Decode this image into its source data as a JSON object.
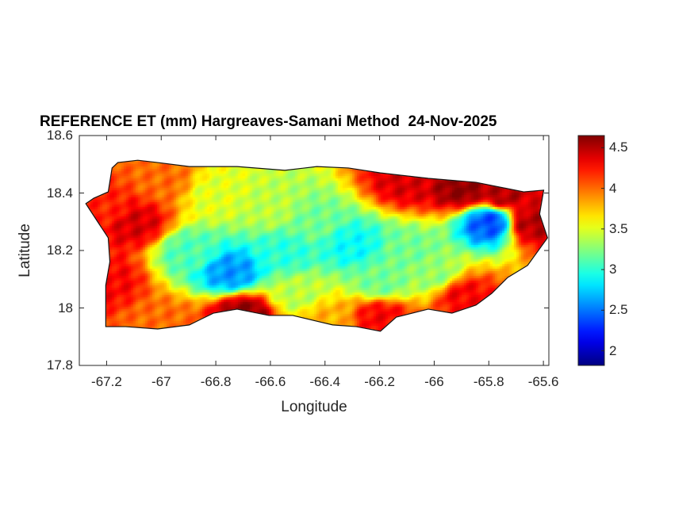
{
  "title": "REFERENCE ET (mm) Hargreaves-Samani Method  24-Nov-2025",
  "chart_data": {
    "type": "heatmap",
    "title": "REFERENCE ET (mm) Hargreaves-Samani Method  24-Nov-2025",
    "xlabel": "Longitude",
    "ylabel": "Latitude",
    "xlim": [
      -67.3,
      -65.58
    ],
    "ylim": [
      17.8,
      18.6
    ],
    "xticks": [
      "-67.2",
      "-67",
      "-66.8",
      "-66.6",
      "-66.4",
      "-66.2",
      "-66",
      "-65.8",
      "-65.6"
    ],
    "xtick_values": [
      -67.2,
      -67,
      -66.8,
      -66.6,
      -66.4,
      -66.2,
      -66,
      -65.8,
      -65.6
    ],
    "yticks": [
      "18.6",
      "18.4",
      "18.2",
      "18",
      "17.8"
    ],
    "ytick_values": [
      18.6,
      18.4,
      18.2,
      18,
      17.8
    ],
    "colorbar": {
      "colormap": "jet",
      "range": [
        1.82,
        4.65
      ],
      "ticks": [
        "4.5",
        "4",
        "3.5",
        "3",
        "2.5",
        "2"
      ],
      "tick_values": [
        4.5,
        4,
        3.5,
        3,
        2.5,
        2
      ]
    },
    "outline": [
      [
        -67.276,
        18.363
      ],
      [
        -67.247,
        18.382
      ],
      [
        -67.194,
        18.404
      ],
      [
        -67.18,
        18.487
      ],
      [
        -67.159,
        18.506
      ],
      [
        -67.086,
        18.514
      ],
      [
        -67.013,
        18.506
      ],
      [
        -66.897,
        18.492
      ],
      [
        -66.722,
        18.492
      ],
      [
        -66.547,
        18.479
      ],
      [
        -66.43,
        18.492
      ],
      [
        -66.314,
        18.487
      ],
      [
        -66.197,
        18.47
      ],
      [
        -66.022,
        18.451
      ],
      [
        -65.847,
        18.437
      ],
      [
        -65.672,
        18.404
      ],
      [
        -65.599,
        18.41
      ],
      [
        -65.614,
        18.327
      ],
      [
        -65.585,
        18.244
      ],
      [
        -65.658,
        18.148
      ],
      [
        -65.731,
        18.106
      ],
      [
        -65.789,
        18.051
      ],
      [
        -65.847,
        18.01
      ],
      [
        -65.935,
        17.982
      ],
      [
        -66.022,
        17.996
      ],
      [
        -66.139,
        17.968
      ],
      [
        -66.197,
        17.919
      ],
      [
        -66.285,
        17.935
      ],
      [
        -66.372,
        17.941
      ],
      [
        -66.43,
        17.954
      ],
      [
        -66.518,
        17.974
      ],
      [
        -66.605,
        17.974
      ],
      [
        -66.722,
        17.996
      ],
      [
        -66.809,
        17.982
      ],
      [
        -66.897,
        17.941
      ],
      [
        -67.013,
        17.927
      ],
      [
        -67.13,
        17.935
      ],
      [
        -67.203,
        17.935
      ],
      [
        -67.203,
        17.996
      ],
      [
        -67.203,
        18.079
      ],
      [
        -67.188,
        18.161
      ],
      [
        -67.194,
        18.244
      ],
      [
        -67.261,
        18.341
      ]
    ],
    "field_samples": [
      [
        -65.9,
        18.42,
        4.6
      ],
      [
        -65.65,
        18.3,
        4.5
      ],
      [
        -66.1,
        18.45,
        4.4
      ],
      [
        -65.75,
        18.4,
        4.5
      ],
      [
        -67.1,
        18.3,
        4.4
      ],
      [
        -67.2,
        18.1,
        4.3
      ],
      [
        -67.0,
        18.45,
        4.0
      ],
      [
        -67.2,
        18.35,
        4.2
      ],
      [
        -66.7,
        17.98,
        4.6
      ],
      [
        -66.2,
        17.97,
        4.3
      ],
      [
        -65.9,
        18.05,
        4.3
      ],
      [
        -67.0,
        17.95,
        4.0
      ],
      [
        -66.4,
        17.97,
        3.8
      ],
      [
        -66.75,
        18.13,
        2.6
      ],
      [
        -66.3,
        18.22,
        2.9
      ],
      [
        -66.45,
        18.3,
        3.2
      ],
      [
        -66.6,
        18.35,
        3.4
      ],
      [
        -65.8,
        18.3,
        2.4
      ],
      [
        -66.1,
        18.2,
        3.2
      ],
      [
        -66.9,
        18.2,
        3.1
      ],
      [
        -66.5,
        18.05,
        3.4
      ],
      [
        -66.2,
        18.1,
        3.2
      ],
      [
        -66.8,
        18.4,
        3.5
      ],
      [
        -66.0,
        18.12,
        3.3
      ],
      [
        -66.55,
        18.2,
        3.0
      ]
    ]
  }
}
